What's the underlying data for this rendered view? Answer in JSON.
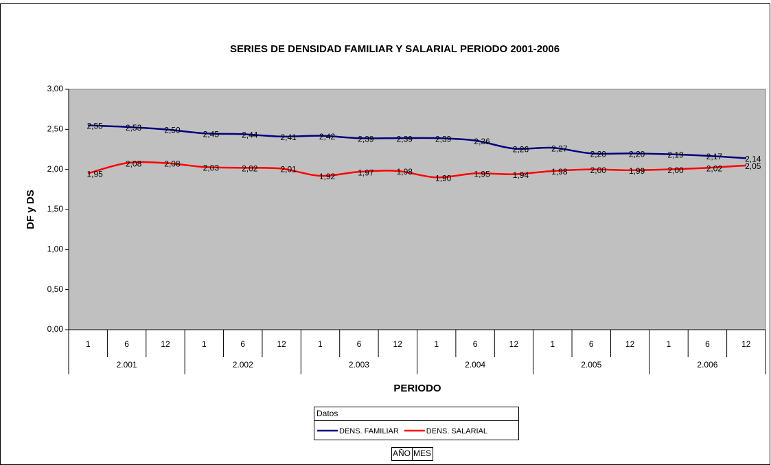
{
  "chart_data": {
    "type": "line",
    "title": "SERIES DE DENSIDAD FAMILIAR Y SALARIAL PERIODO 2001-2006",
    "y_label": "DF y DS",
    "x_label": "PERIODO",
    "categories": [
      "1",
      "6",
      "12",
      "1",
      "6",
      "12",
      "1",
      "6",
      "12",
      "1",
      "6",
      "12",
      "1",
      "6",
      "12",
      "1",
      "6",
      "12"
    ],
    "category_groups": [
      "2.001",
      "2.002",
      "2.003",
      "2.004",
      "2.005",
      "2.006"
    ],
    "series": [
      {
        "name": "DENS. FAMILIAR",
        "color": "#000080",
        "values": [
          2.55,
          2.53,
          2.5,
          2.45,
          2.44,
          2.41,
          2.42,
          2.39,
          2.39,
          2.39,
          2.36,
          2.26,
          2.27,
          2.2,
          2.2,
          2.19,
          2.17,
          2.14
        ],
        "value_labels": [
          "2,55",
          "2,53",
          "2,50",
          "2,45",
          "2,44",
          "2,41",
          "2,42",
          "2,39",
          "2,39",
          "2,39",
          "2,36",
          "2,26",
          "2,27",
          "2,20",
          "2,20",
          "2,19",
          "2,17",
          "2,14"
        ]
      },
      {
        "name": "DENS. SALARIAL",
        "color": "#ff0000",
        "values": [
          1.95,
          2.08,
          2.08,
          2.03,
          2.02,
          2.01,
          1.92,
          1.97,
          1.98,
          1.9,
          1.95,
          1.94,
          1.98,
          2.0,
          1.99,
          2.0,
          2.02,
          2.05
        ],
        "value_labels": [
          "1,95",
          "2,08",
          "2,08",
          "2,03",
          "2,02",
          "2,01",
          "1,92",
          "1,97",
          "1,98",
          "1,90",
          "1,95",
          "1,94",
          "1,98",
          "2,00",
          "1,99",
          "2,00",
          "2,02",
          "2,05"
        ]
      }
    ],
    "ylim": [
      0,
      3
    ],
    "yticks": [
      {
        "value": 0,
        "label": "0,00"
      },
      {
        "value": 0.5,
        "label": "0,50"
      },
      {
        "value": 1,
        "label": "1,00"
      },
      {
        "value": 1.5,
        "label": "1,50"
      },
      {
        "value": 2,
        "label": "2,00"
      },
      {
        "value": 2.5,
        "label": "2,50"
      },
      {
        "value": 3,
        "label": "3,00"
      }
    ],
    "plot_background": "#c0c0c0",
    "legend_title": "Datos",
    "field_buttons": [
      "AÑO",
      "MES"
    ]
  }
}
